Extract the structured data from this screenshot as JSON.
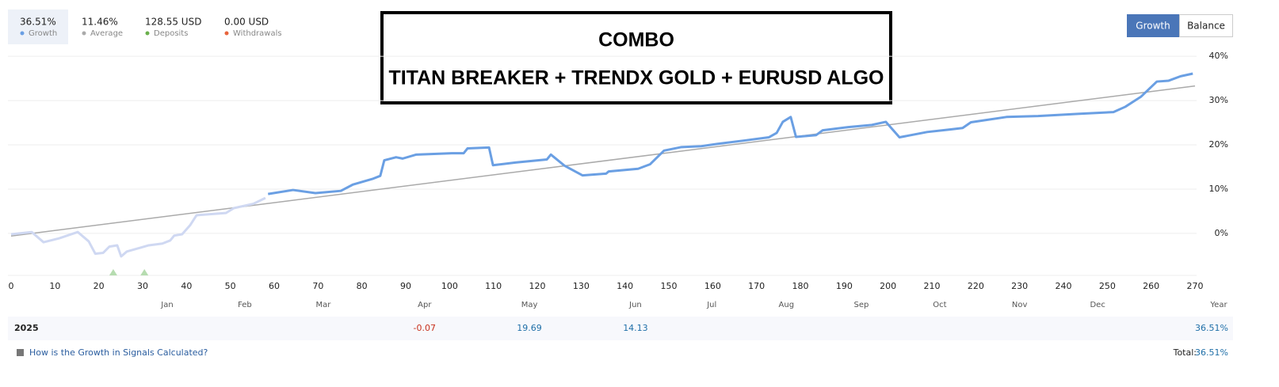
{
  "header": {
    "stats": [
      {
        "value": "36.51%",
        "label": "Growth",
        "color": "#6a9fe3"
      },
      {
        "value": "11.46%",
        "label": "Average",
        "color": "#aaaaaa"
      },
      {
        "value": "128.55 USD",
        "label": "Deposits",
        "color": "#6ab04c"
      },
      {
        "value": "0.00 USD",
        "label": "Withdrawals",
        "color": "#e8643c"
      }
    ],
    "buttons": [
      "Growth",
      "Balance"
    ]
  },
  "title_box": {
    "lines": [
      "COMBO",
      "TITAN BREAKER + TRENDX GOLD + EURUSD ALGO"
    ]
  },
  "chart_data": {
    "type": "line",
    "xlim": [
      0,
      270
    ],
    "ylim": [
      -9.5,
      42
    ],
    "xticks": [
      0,
      10,
      20,
      30,
      40,
      50,
      60,
      70,
      80,
      90,
      100,
      110,
      120,
      130,
      140,
      150,
      160,
      170,
      180,
      190,
      200,
      210,
      220,
      230,
      240,
      250,
      260,
      270
    ],
    "yticks": [
      {
        "value": 0,
        "label": "0%"
      },
      {
        "value": 10,
        "label": "10%"
      },
      {
        "value": 20,
        "label": "20%"
      },
      {
        "value": 30,
        "label": "30%"
      },
      {
        "value": 40,
        "label": "40%"
      }
    ],
    "grid": true,
    "month_labels": [
      {
        "value": 35.6,
        "label": "Jan"
      },
      {
        "value": 53.3,
        "label": "Feb"
      },
      {
        "value": 71.2,
        "label": "Mar"
      },
      {
        "value": 94.3,
        "label": "Apr"
      },
      {
        "value": 118.2,
        "label": "May"
      },
      {
        "value": 142.4,
        "label": "Jun"
      },
      {
        "value": 159.8,
        "label": "Jul"
      },
      {
        "value": 176.8,
        "label": "Aug"
      },
      {
        "value": 193.9,
        "label": "Sep"
      },
      {
        "value": 211.8,
        "label": "Oct"
      },
      {
        "value": 230,
        "label": "Nov"
      },
      {
        "value": 247.8,
        "label": "Dec"
      }
    ],
    "year_axis_label": "Year",
    "deposit_markers": [
      23.3,
      30.4
    ],
    "deposit_color": "#b6dcb0",
    "series": [
      {
        "name": "Trend",
        "color": "#aaaaaa",
        "width": 1.5,
        "x": [
          0,
          270
        ],
        "values": [
          -0.6,
          33.3
        ]
      },
      {
        "name": "Growth (early)",
        "color": "#cfd8f2",
        "width": 3,
        "x": [
          0,
          4.7,
          7.4,
          11,
          15.2,
          17.7,
          19.2,
          21,
          22.4,
          24.2,
          25.1,
          26.4,
          29.6,
          31.4,
          34.5,
          36.3,
          37.2,
          39,
          40.8,
          42.3,
          44.8,
          49,
          50.8,
          55.3,
          58
        ],
        "values": [
          -0.2,
          0.3,
          -2,
          -1.1,
          0.3,
          -1.8,
          -4.6,
          -4.4,
          -3,
          -2.7,
          -5.2,
          -4.1,
          -3.2,
          -2.7,
          -2.3,
          -1.6,
          -0.5,
          -0.2,
          1.8,
          4.1,
          4.3,
          4.6,
          5.7,
          6.7,
          8
        ]
      },
      {
        "name": "Growth",
        "color": "#6a9fe3",
        "width": 3,
        "x": [
          58.6,
          64.3,
          69.4,
          75.2,
          77.9,
          82.4,
          84.2,
          85.1,
          87.8,
          89.3,
          92.4,
          100.5,
          103.2,
          104.1,
          109,
          109.9,
          115,
          122.2,
          123.1,
          126.2,
          130.3,
          135.7,
          136.3,
          143,
          145.7,
          148.9,
          152.9,
          157.4,
          161,
          167.4,
          172.8,
          174.6,
          176,
          177.8,
          179,
          183.6,
          185.1,
          190.9,
          196.3,
          199.5,
          202.6,
          208.9,
          214.3,
          217,
          218.9,
          227,
          234.2,
          243.3,
          251.4,
          254.1,
          257.7,
          261.3,
          264,
          266.7,
          269.5
        ],
        "values": [
          8.9,
          9.8,
          9.1,
          9.6,
          11,
          12.3,
          13,
          16.5,
          17.2,
          16.9,
          17.8,
          18.1,
          18.1,
          19.2,
          19.4,
          15.4,
          16,
          16.7,
          17.8,
          15.3,
          13.1,
          13.5,
          14,
          14.6,
          15.6,
          18.7,
          19.5,
          19.7,
          20.2,
          21,
          21.7,
          22.7,
          25.2,
          26.3,
          21.8,
          22.2,
          23.3,
          24,
          24.5,
          25.2,
          21.7,
          22.9,
          23.5,
          23.8,
          25.1,
          26.3,
          26.5,
          27,
          27.4,
          28.6,
          30.9,
          34.3,
          34.5,
          35.5,
          36.1
        ]
      }
    ]
  },
  "year_row": {
    "year": "2025",
    "cells": [
      null,
      null,
      null,
      -0.07,
      19.69,
      14.13,
      null,
      null,
      null,
      null,
      null,
      null
    ],
    "total": "36.51%"
  },
  "footer": {
    "link": "How is the Growth in Signals Calculated?",
    "total_label": "Total:",
    "total_value": "36.51%"
  }
}
